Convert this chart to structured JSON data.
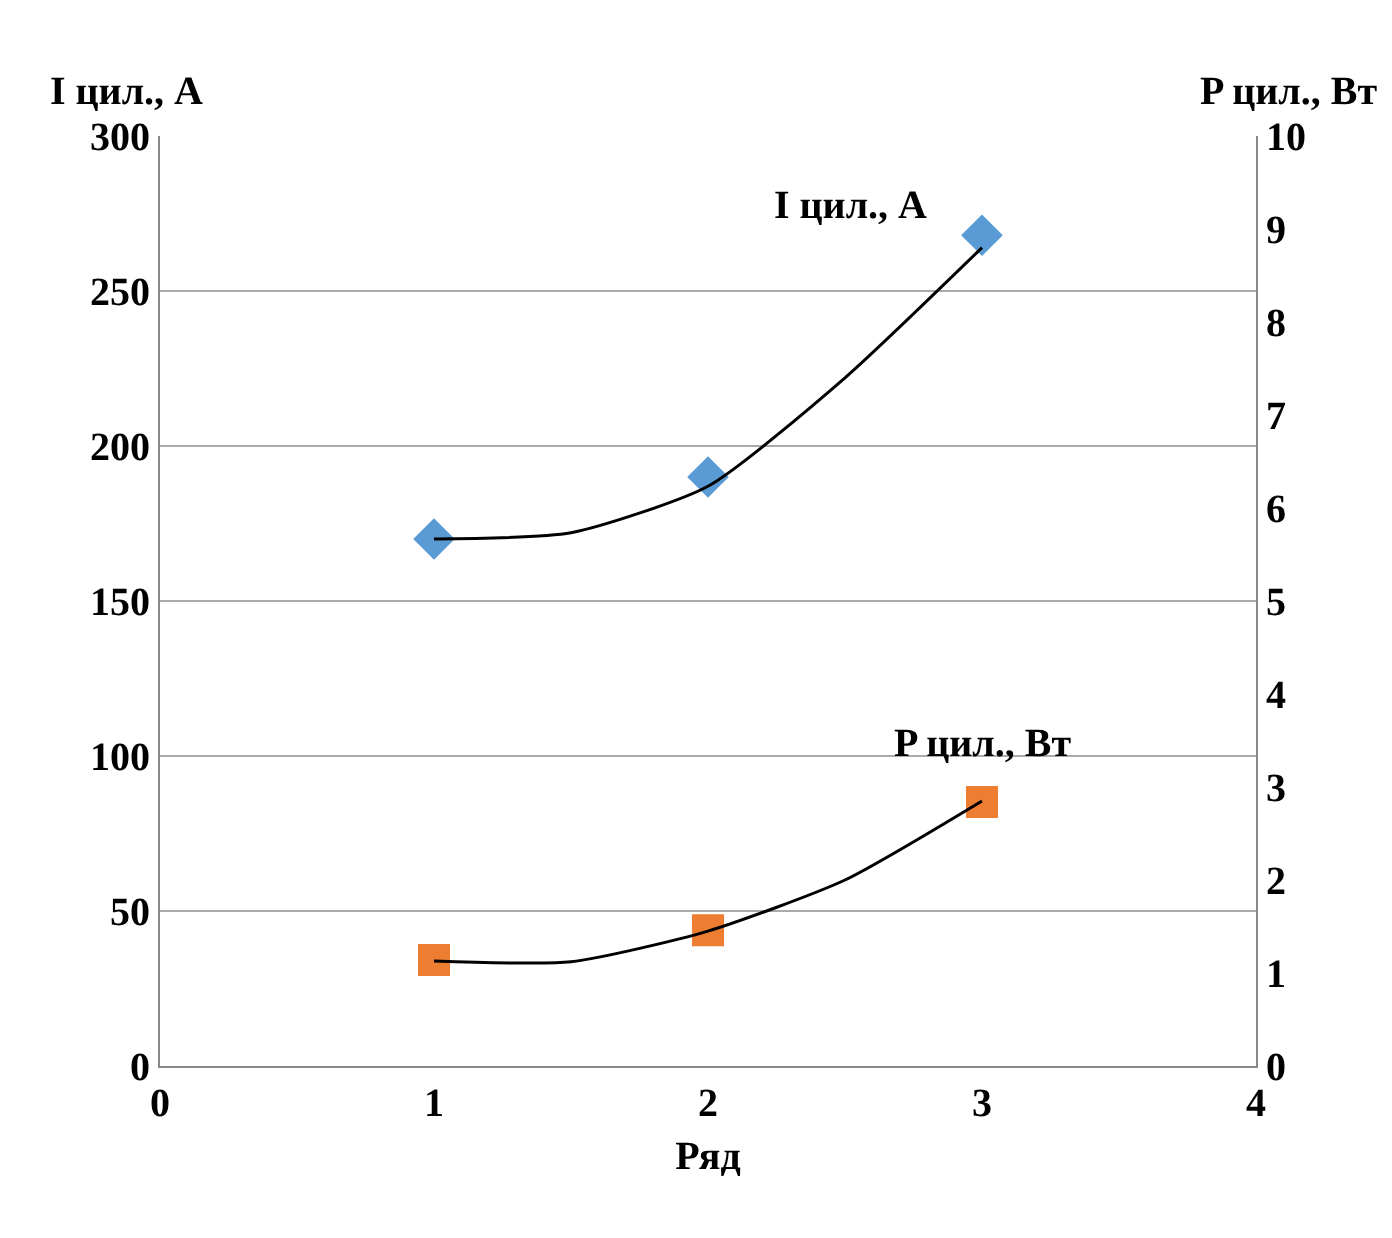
{
  "chart_data": {
    "type": "scatter",
    "xlabel": "Ряд",
    "ylabel": "I цил., А",
    "y2label": "P цил., Вт",
    "xlim": [
      0,
      4
    ],
    "xticks": [
      0,
      1,
      2,
      3,
      4
    ],
    "ylim": [
      0,
      300
    ],
    "yticks": [
      0,
      50,
      100,
      150,
      200,
      250,
      300
    ],
    "y2lim": [
      0,
      10
    ],
    "y2ticks": [
      0,
      1,
      2,
      3,
      4,
      5,
      6,
      7,
      8,
      9,
      10
    ],
    "grid": "y",
    "legend": false,
    "series": [
      {
        "name": "I цил., А",
        "color": "#5b9bd5",
        "marker": "diamond",
        "x": [
          1,
          2,
          3
        ],
        "values": [
          170,
          190,
          268
        ]
      },
      {
        "name": "P цил., Вт",
        "color": "#ed7d31",
        "marker": "square",
        "axis": "y2",
        "x": [
          1,
          2,
          3
        ],
        "values": [
          1.14,
          1.46,
          2.84
        ]
      },
      {
        "type": "line",
        "color": "#000000",
        "marker": "none",
        "x": [
          1,
          1.5,
          2,
          2.5,
          3
        ],
        "values": [
          170,
          172,
          187,
          222,
          264
        ]
      },
      {
        "type": "line",
        "color": "#000000",
        "marker": "none",
        "axis": "y2",
        "x": [
          1,
          1.5,
          2,
          2.5,
          3
        ],
        "values": [
          1.13,
          1.12,
          1.45,
          2.0,
          2.85
        ]
      }
    ]
  }
}
